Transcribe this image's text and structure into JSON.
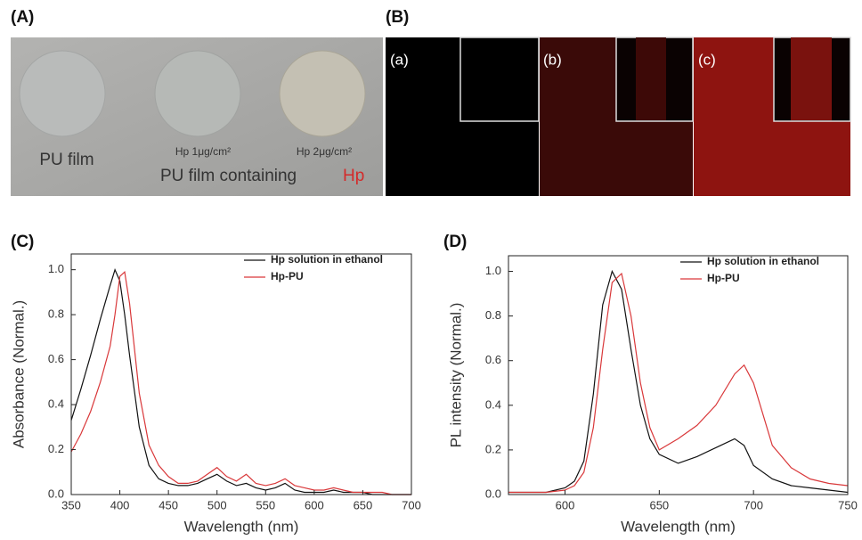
{
  "panels": {
    "A": {
      "label": "(A)",
      "labels": [
        "PU film",
        "Hp 1μg/cm²",
        "Hp 2μg/cm²"
      ],
      "caption": "PU film containing",
      "caption_highlight": "Hp"
    },
    "B": {
      "label": "(B)",
      "images": [
        "(a)",
        "(b)",
        "(c)"
      ]
    }
  },
  "chart_data": [
    {
      "type": "line",
      "panel_label": "(C)",
      "x_label": "Wavelength (nm)",
      "y_label": "Absorbance (Normal.)",
      "x": [
        350,
        360,
        370,
        380,
        390,
        395,
        400,
        405,
        410,
        420,
        430,
        440,
        450,
        460,
        470,
        480,
        490,
        500,
        510,
        520,
        530,
        540,
        550,
        560,
        570,
        580,
        590,
        600,
        610,
        620,
        630,
        640,
        650,
        660,
        670,
        680,
        690,
        700
      ],
      "series": [
        {
          "name": "Hp solution in ethanol",
          "color": "#111111",
          "values": [
            0.33,
            0.47,
            0.62,
            0.78,
            0.93,
            1.0,
            0.95,
            0.8,
            0.62,
            0.3,
            0.13,
            0.07,
            0.05,
            0.04,
            0.04,
            0.05,
            0.07,
            0.09,
            0.06,
            0.04,
            0.05,
            0.03,
            0.02,
            0.03,
            0.05,
            0.02,
            0.01,
            0.01,
            0.01,
            0.02,
            0.01,
            0.01,
            0.01,
            0.0,
            0.0,
            0.0,
            0.0,
            0.0
          ]
        },
        {
          "name": "Hp-PU",
          "color": "#d9383a",
          "values": [
            0.19,
            0.27,
            0.37,
            0.5,
            0.66,
            0.8,
            0.97,
            0.99,
            0.85,
            0.45,
            0.22,
            0.13,
            0.08,
            0.05,
            0.05,
            0.06,
            0.09,
            0.12,
            0.08,
            0.06,
            0.09,
            0.05,
            0.04,
            0.05,
            0.07,
            0.04,
            0.03,
            0.02,
            0.02,
            0.03,
            0.02,
            0.01,
            0.01,
            0.01,
            0.01,
            0.0,
            0.0,
            0.0
          ]
        }
      ],
      "xlim": [
        350,
        700
      ],
      "ylim": [
        0,
        1.07
      ],
      "xticks": [
        350,
        400,
        450,
        500,
        550,
        600,
        650,
        700
      ],
      "yticks": [
        {
          "value": 0,
          "label": "0.0"
        },
        {
          "value": 0.2,
          "label": "0.2"
        },
        {
          "value": 0.4,
          "label": "0.4"
        },
        {
          "value": 0.6,
          "label": "0.6"
        },
        {
          "value": 0.8,
          "label": "0.8"
        },
        {
          "value": 1,
          "label": "1.0"
        }
      ],
      "legend": "upper right"
    },
    {
      "type": "line",
      "panel_label": "(D)",
      "x_label": "Wavelength (nm)",
      "y_label": "PL intensity (Normal.)",
      "x": [
        570,
        580,
        590,
        600,
        605,
        610,
        615,
        620,
        625,
        630,
        635,
        640,
        645,
        650,
        660,
        670,
        680,
        690,
        695,
        700,
        710,
        720,
        730,
        740,
        750
      ],
      "series": [
        {
          "name": "Hp solution in ethanol",
          "color": "#111111",
          "values": [
            0.01,
            0.01,
            0.01,
            0.03,
            0.06,
            0.15,
            0.45,
            0.85,
            1.0,
            0.92,
            0.65,
            0.4,
            0.25,
            0.18,
            0.14,
            0.17,
            0.21,
            0.25,
            0.22,
            0.13,
            0.07,
            0.04,
            0.03,
            0.02,
            0.01
          ]
        },
        {
          "name": "Hp-PU",
          "color": "#d9383a",
          "values": [
            0.01,
            0.01,
            0.01,
            0.02,
            0.04,
            0.1,
            0.3,
            0.65,
            0.95,
            0.99,
            0.8,
            0.5,
            0.3,
            0.2,
            0.25,
            0.31,
            0.4,
            0.54,
            0.58,
            0.5,
            0.22,
            0.12,
            0.07,
            0.05,
            0.04
          ]
        }
      ],
      "xlim": [
        570,
        750
      ],
      "ylim": [
        0,
        1.07
      ],
      "xticks": [
        600,
        650,
        700,
        750
      ],
      "yticks": [
        {
          "value": 0,
          "label": "0.0"
        },
        {
          "value": 0.2,
          "label": "0.2"
        },
        {
          "value": 0.4,
          "label": "0.4"
        },
        {
          "value": 0.6,
          "label": "0.6"
        },
        {
          "value": 0.8,
          "label": "0.8"
        },
        {
          "value": 1,
          "label": "1.0"
        }
      ],
      "legend": "upper right"
    }
  ]
}
